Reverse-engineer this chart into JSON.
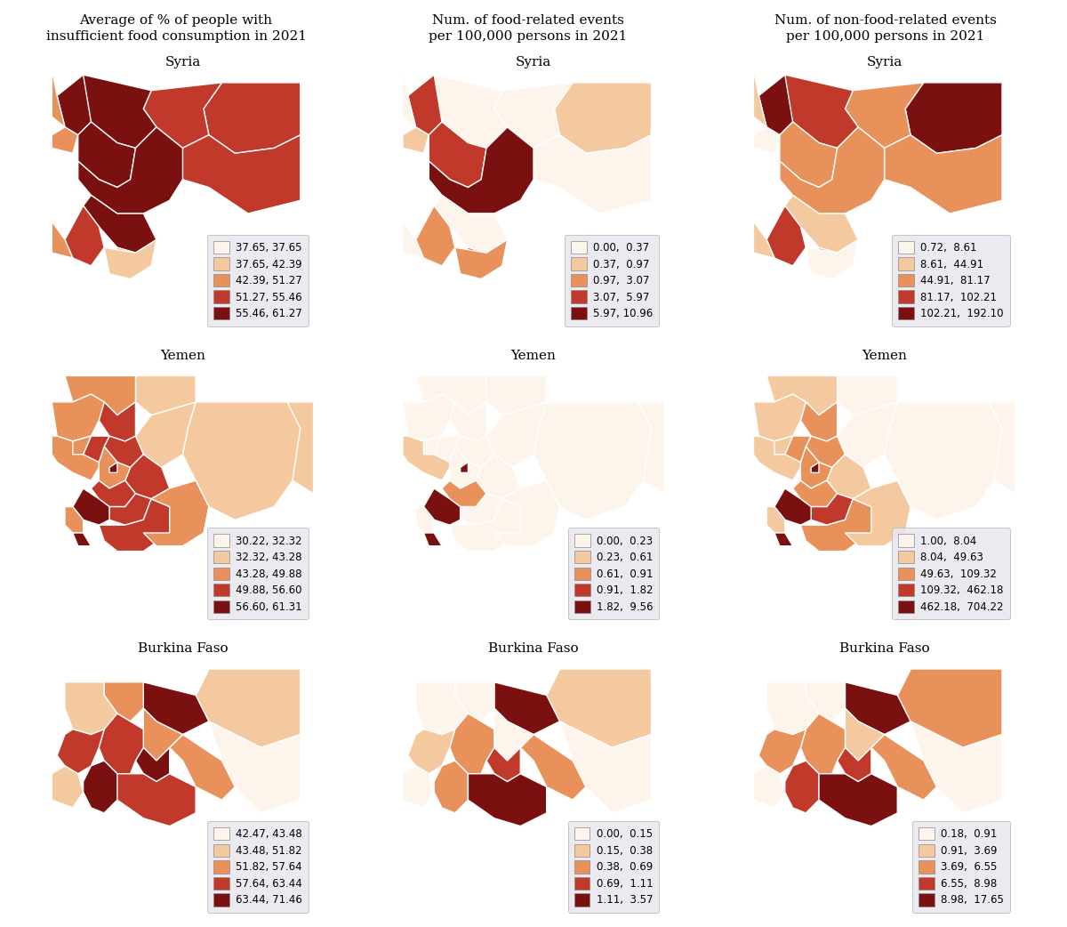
{
  "col_titles": [
    "Average of % of people with\ninsufficient food consumption in 2021",
    "Num. of food-related events\nper 100,000 persons in 2021",
    "Num. of non-food-related events\nper 100,000 persons in 2021"
  ],
  "row_titles": [
    "Syria",
    "Yemen",
    "Burkina Faso"
  ],
  "legends": {
    "syria_col1": [
      "37.65, 37.65",
      "37.65, 42.39",
      "42.39, 51.27",
      "51.27, 55.46",
      "55.46, 61.27"
    ],
    "syria_col2": [
      "0.00,  0.37",
      "0.37,  0.97",
      "0.97,  3.07",
      "3.07,  5.97",
      "5.97, 10.96"
    ],
    "syria_col3": [
      "0.72,  8.61",
      "8.61,  44.91",
      "44.91,  81.17",
      "81.17,  102.21",
      "102.21,  192.10"
    ],
    "yemen_col1": [
      "30.22, 32.32",
      "32.32, 43.28",
      "43.28, 49.88",
      "49.88, 56.60",
      "56.60, 61.31"
    ],
    "yemen_col2": [
      "0.00,  0.23",
      "0.23,  0.61",
      "0.61,  0.91",
      "0.91,  1.82",
      "1.82,  9.56"
    ],
    "yemen_col3": [
      "1.00,  8.04",
      "8.04,  49.63",
      "49.63,  109.32",
      "109.32,  462.18",
      "462.18,  704.22"
    ],
    "burkina_col1": [
      "42.47, 43.48",
      "43.48, 51.82",
      "51.82, 57.64",
      "57.64, 63.44",
      "63.44, 71.46"
    ],
    "burkina_col2": [
      "0.00,  0.15",
      "0.15,  0.38",
      "0.38,  0.69",
      "0.69,  1.11",
      "1.11,  3.57"
    ],
    "burkina_col3": [
      "0.18,  0.91",
      "0.91,  3.69",
      "3.69,  6.55",
      "6.55,  8.98",
      "8.98,  17.65"
    ]
  },
  "colors_5": [
    "#fdf5ec",
    "#f5c9a0",
    "#e8915a",
    "#c0392b",
    "#7b1010"
  ],
  "background": "#ffffff",
  "title_fontsize": 11,
  "country_fontsize": 11,
  "legend_fontsize": 8.5
}
